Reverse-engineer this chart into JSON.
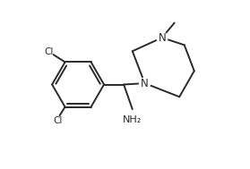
{
  "background_color": "#ffffff",
  "line_color": "#2a2a2a",
  "text_color": "#2a2a2a",
  "figure_width": 2.79,
  "figure_height": 1.89,
  "dpi": 100,
  "xlim": [
    0,
    10
  ],
  "ylim": [
    0,
    6.8
  ]
}
